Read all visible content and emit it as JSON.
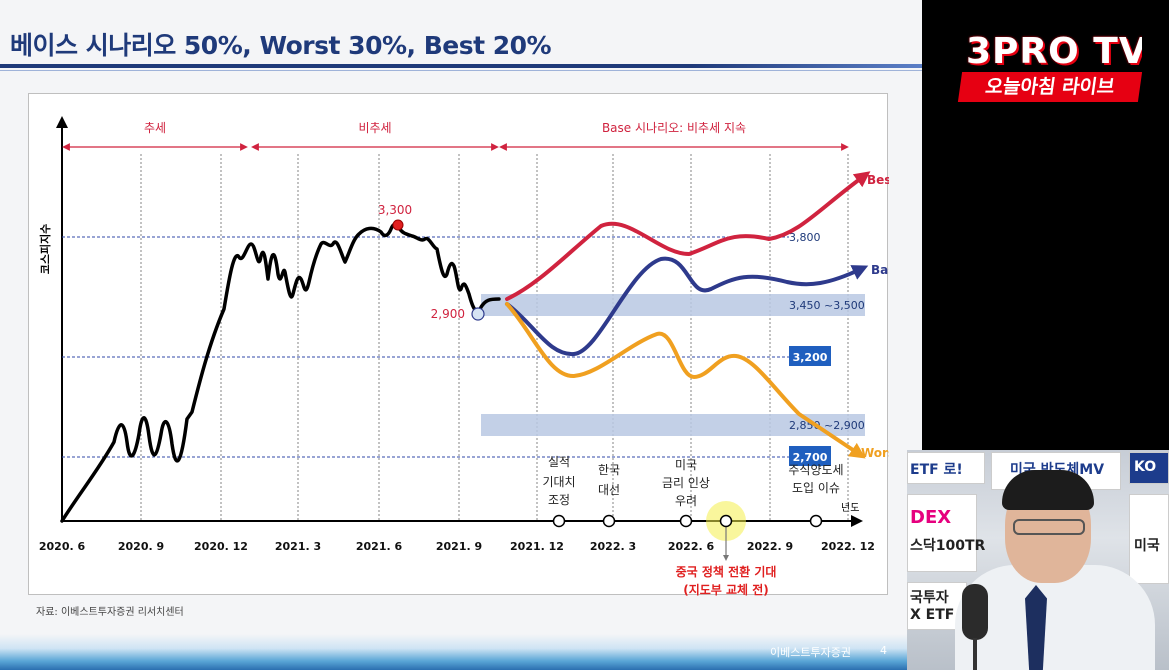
{
  "slide": {
    "title": "베이스 시나리오 50%, Worst 30%, Best 20%",
    "source": "자료: 이베스트투자증권 리서치센터",
    "footer_company": "이베스트투자증권",
    "page_number": "4"
  },
  "chart_data": {
    "type": "line",
    "ylabel": "코스피지수",
    "xlabel": "년도",
    "x_tick_labels": [
      "2020. 6",
      "2020. 9",
      "2020. 12",
      "2021. 3",
      "2021. 6",
      "2021. 9",
      "2021. 12",
      "2022. 3",
      "2022. 6",
      "2022. 9",
      "2022. 12"
    ],
    "phases": [
      {
        "label": "추세"
      },
      {
        "label": "비추세"
      },
      {
        "label": "Base 시나리오: 비추세 지속"
      }
    ],
    "reference_levels": [
      {
        "label": "3,800",
        "value": 3800,
        "boxed": false
      },
      {
        "label": "3,450 ~3,500",
        "value_low": 3450,
        "value_high": 3500,
        "band": true
      },
      {
        "label": "3,200",
        "value": 3200,
        "boxed": true
      },
      {
        "label": "2,850 ~2,900",
        "value_low": 2850,
        "value_high": 2900,
        "band": true
      },
      {
        "label": "2,700",
        "value": 2700,
        "boxed": true
      }
    ],
    "annotations": [
      {
        "label": "3,300",
        "marker": "peak"
      },
      {
        "label": "2,900",
        "marker": "start"
      }
    ],
    "series": [
      {
        "name": "Best",
        "color": "#d0233f"
      },
      {
        "name": "Base",
        "color": "#2e3a8c"
      },
      {
        "name": "Worst",
        "color": "#f0a020"
      }
    ],
    "history_color": "#000000",
    "events": [
      {
        "label_lines": [
          "실적",
          "기대치",
          "조정"
        ],
        "x": "2022. 1"
      },
      {
        "label_lines": [
          "한국",
          "대선"
        ],
        "x": "2022. 3"
      },
      {
        "label_lines": [
          "미국",
          "금리 인상",
          "우려"
        ],
        "x": "2022. 6"
      },
      {
        "label_lines": [],
        "x": "2022. 7",
        "highlighted": true
      },
      {
        "label_lines": [
          "주식양도세",
          "도입 이슈"
        ],
        "x": "2022. 11"
      }
    ],
    "highlight_note": [
      "중국 정책 전환 기대",
      "(지도부 교체 전)"
    ],
    "highlight_color": "#e02020",
    "band_color": "#b9c8e3",
    "box_color": "#1f5fbf"
  },
  "broadcast": {
    "logo_main": "3PRO TV",
    "logo_sub": "오늘아침 라이브",
    "banner_left": "ETF 로!",
    "banner_left_sub": "DEX",
    "banner_left_sub2": "스닥100TR",
    "banner_mid": "미국 반도체MV",
    "banner_right": "KO",
    "banner_right_sub": "미국",
    "banner_bottom_left": "국투자",
    "banner_bottom_left2": "X ETF"
  }
}
